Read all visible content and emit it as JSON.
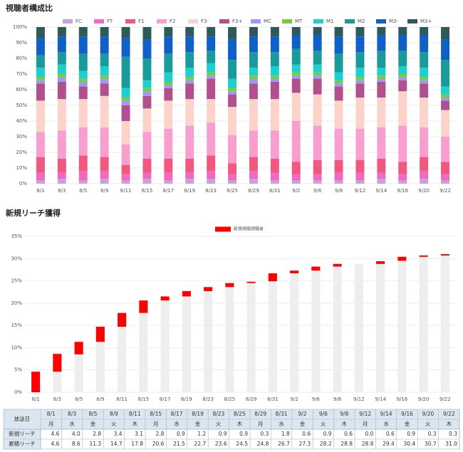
{
  "chart_data": [
    {
      "type": "stacked_bar",
      "title": "視聴者構成比",
      "categories": [
        "8/1",
        "8/3",
        "8/5",
        "8/9",
        "8/11",
        "8/15",
        "8/17",
        "8/19",
        "8/23",
        "8/25",
        "8/29",
        "8/31",
        "9/2",
        "9/6",
        "9/8",
        "9/12",
        "9/14",
        "9/16",
        "9/20",
        "9/22"
      ],
      "ylim": [
        0,
        100
      ],
      "yticks": [
        {
          "value": 0,
          "label": "0%"
        },
        {
          "value": 10,
          "label": "10%"
        },
        {
          "value": 20,
          "label": "20%"
        },
        {
          "value": 30,
          "label": "30%"
        },
        {
          "value": 40,
          "label": "40%"
        },
        {
          "value": 50,
          "label": "50%"
        },
        {
          "value": 60,
          "label": "60%"
        },
        {
          "value": 70,
          "label": "70%"
        },
        {
          "value": 80,
          "label": "80%"
        },
        {
          "value": 90,
          "label": "90%"
        },
        {
          "value": 100,
          "label": "100%"
        }
      ],
      "grid": true,
      "series": [
        {
          "name": "FC",
          "color": "#c9a0dc",
          "values": [
            2,
            3,
            2,
            3,
            2,
            3,
            2,
            3,
            3,
            2,
            3,
            2,
            2,
            2,
            2,
            2,
            3,
            2,
            3,
            2
          ]
        },
        {
          "name": "FT",
          "color": "#f06bbf",
          "values": [
            5,
            4,
            6,
            5,
            4,
            4,
            5,
            4,
            5,
            4,
            5,
            5,
            4,
            4,
            5,
            5,
            4,
            4,
            5,
            4
          ]
        },
        {
          "name": "F1",
          "color": "#f0587f",
          "values": [
            10,
            9,
            10,
            9,
            6,
            9,
            9,
            9,
            10,
            7,
            9,
            9,
            8,
            9,
            8,
            8,
            9,
            8,
            9,
            8
          ]
        },
        {
          "name": "F2",
          "color": "#f7a0cf",
          "values": [
            16,
            18,
            18,
            19,
            13,
            17,
            19,
            21,
            21,
            18,
            17,
            18,
            26,
            22,
            20,
            20,
            20,
            23,
            19,
            16
          ]
        },
        {
          "name": "F3-",
          "color": "#fbd3cb",
          "values": [
            20,
            20,
            18,
            20,
            15,
            15,
            18,
            17,
            15,
            18,
            20,
            20,
            18,
            20,
            18,
            20,
            19,
            22,
            19,
            17
          ]
        },
        {
          "name": "F3+",
          "color": "#b0508c",
          "values": [
            11,
            11,
            8,
            8,
            10,
            8,
            8,
            10,
            13,
            8,
            10,
            11,
            9,
            10,
            9,
            9,
            10,
            7,
            9,
            6
          ]
        },
        {
          "name": "MC",
          "color": "#9b9bef",
          "values": [
            2,
            3,
            3,
            3,
            3,
            3,
            2,
            2,
            2,
            2,
            3,
            2,
            2,
            2,
            2,
            2,
            2,
            2,
            2,
            2
          ]
        },
        {
          "name": "MT",
          "color": "#7acc3c",
          "values": [
            2,
            2,
            2,
            2,
            2,
            2,
            2,
            2,
            2,
            2,
            2,
            2,
            2,
            2,
            2,
            2,
            2,
            2,
            2,
            2
          ]
        },
        {
          "name": "M1",
          "color": "#1ecfcf",
          "values": [
            6,
            6,
            5,
            6,
            6,
            5,
            6,
            6,
            6,
            6,
            5,
            6,
            5,
            5,
            5,
            6,
            5,
            5,
            6,
            5
          ]
        },
        {
          "name": "M2",
          "color": "#1a9a9a",
          "values": [
            8,
            8,
            11,
            8,
            20,
            14,
            12,
            10,
            8,
            12,
            10,
            9,
            10,
            9,
            12,
            10,
            11,
            10,
            10,
            17
          ]
        },
        {
          "name": "M3-",
          "color": "#1060c8",
          "values": [
            11,
            10,
            11,
            11,
            12,
            12,
            11,
            10,
            9,
            13,
            10,
            10,
            9,
            10,
            11,
            10,
            10,
            10,
            11,
            13
          ]
        },
        {
          "name": "M3+",
          "color": "#2f5a5a",
          "values": [
            7,
            6,
            6,
            6,
            7,
            8,
            6,
            6,
            6,
            8,
            6,
            6,
            5,
            5,
            6,
            6,
            5,
            5,
            5,
            8
          ]
        }
      ]
    },
    {
      "type": "waterfall",
      "title": "新規リーチ獲得",
      "categories": [
        "8/1",
        "8/3",
        "8/5",
        "8/9",
        "8/11",
        "8/15",
        "8/17",
        "8/19",
        "8/23",
        "8/25",
        "8/29",
        "8/31",
        "9/2",
        "9/6",
        "9/8",
        "9/12",
        "9/14",
        "9/16",
        "9/20",
        "9/22"
      ],
      "ylim": [
        0,
        35
      ],
      "yticks": [
        {
          "value": 0,
          "label": "0%"
        },
        {
          "value": 5,
          "label": "5%"
        },
        {
          "value": 10,
          "label": "10%"
        },
        {
          "value": 15,
          "label": "15%"
        },
        {
          "value": 20,
          "label": "20%"
        },
        {
          "value": 25,
          "label": "25%"
        },
        {
          "value": 30,
          "label": "30%"
        },
        {
          "value": 35,
          "label": "35%"
        }
      ],
      "grid": true,
      "base_color": "#eeeeee",
      "series": [
        {
          "name": "新規視聴視聴者",
          "color": "#ff0000",
          "values": [
            4.6,
            4.0,
            2.8,
            3.4,
            3.1,
            2.8,
            0.9,
            1.2,
            0.9,
            0.9,
            0.3,
            1.8,
            0.6,
            0.9,
            0.6,
            0.0,
            0.6,
            0.9,
            0.3,
            0.3
          ]
        }
      ],
      "totals": [
        4.6,
        8.6,
        11.3,
        14.7,
        17.8,
        20.6,
        21.5,
        22.7,
        23.6,
        24.5,
        24.8,
        26.7,
        27.3,
        28.2,
        28.8,
        28.8,
        29.4,
        30.4,
        30.7,
        31.0
      ]
    }
  ],
  "table": {
    "date_label": "放送日",
    "weekdays": [
      "月",
      "水",
      "金",
      "火",
      "木",
      "月",
      "水",
      "金",
      "火",
      "木",
      "月",
      "水",
      "金",
      "火",
      "木",
      "月",
      "水",
      "金",
      "火",
      "木"
    ],
    "rows": [
      {
        "label": "新規リーチ",
        "cells": [
          "4.6",
          "4.0",
          "2.8",
          "3.4",
          "3.1",
          "2.8",
          "0.9",
          "1.2",
          "0.9",
          "0.9",
          "0.3",
          "1.8",
          "0.6",
          "0.9",
          "0.6",
          "0.0",
          "0.6",
          "0.9",
          "0.3",
          "0.3"
        ]
      },
      {
        "label": "累積リーチ",
        "cells": [
          "4.6",
          "8.6",
          "11.3",
          "14.7",
          "17.8",
          "20.6",
          "21.5",
          "22.7",
          "23.6",
          "24.5",
          "24.8",
          "26.7",
          "27.3",
          "28.2",
          "28.8",
          "28.8",
          "29.4",
          "30.4",
          "30.7",
          "31.0"
        ]
      }
    ]
  }
}
